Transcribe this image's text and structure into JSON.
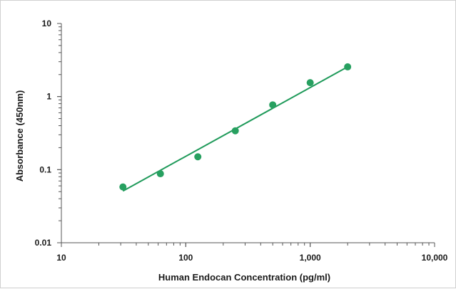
{
  "chart_data": {
    "type": "scatter",
    "title": "",
    "xlabel": "Human Endocan Concentration (pg/ml)",
    "ylabel": "Absorbance (450nm)",
    "x_scale": "log",
    "y_scale": "log",
    "xlim": [
      10,
      10000
    ],
    "ylim": [
      0.01,
      10
    ],
    "x_ticks": [
      {
        "value": 10,
        "label": "10"
      },
      {
        "value": 100,
        "label": "100"
      },
      {
        "value": 1000,
        "label": "1,000"
      },
      {
        "value": 10000,
        "label": "10,000"
      }
    ],
    "y_ticks": [
      {
        "value": 10,
        "label": "10"
      },
      {
        "value": 1,
        "label": "1"
      },
      {
        "value": 0.1,
        "label": "0.1"
      },
      {
        "value": 0.01,
        "label": "0.01"
      }
    ],
    "grid": false,
    "legend": "none",
    "series": [
      {
        "x": [
          31.25,
          62.5,
          125,
          250,
          500,
          1000,
          2000
        ],
        "y": [
          0.058,
          0.088,
          0.15,
          0.34,
          0.77,
          1.55,
          2.55
        ]
      }
    ],
    "trendline": {
      "x": [
        31.25,
        2000
      ],
      "y": [
        0.051,
        2.55
      ]
    },
    "colors": {
      "marker": "#27a060",
      "trendline": "#1f9a5a",
      "axis": "#555555"
    }
  }
}
